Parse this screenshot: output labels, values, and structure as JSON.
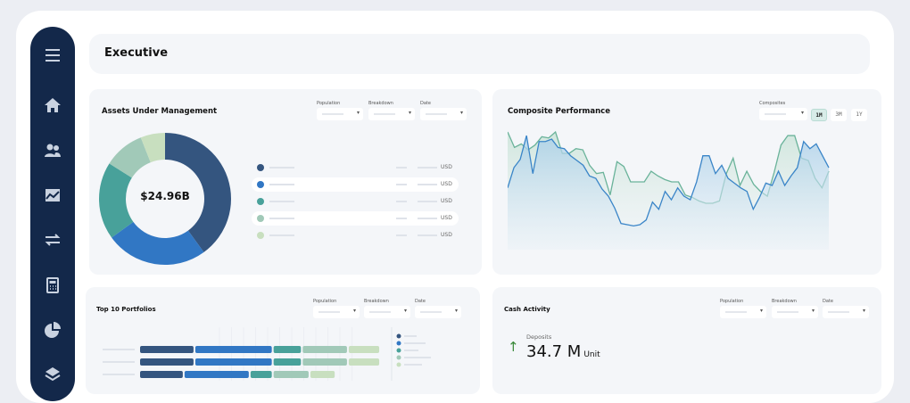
{
  "header": {
    "title": "Executive"
  },
  "sidebar": {
    "items": [
      {
        "icon": "menu-icon"
      },
      {
        "icon": "home-icon"
      },
      {
        "icon": "users-icon"
      },
      {
        "icon": "chart-icon"
      },
      {
        "icon": "transfer-icon"
      },
      {
        "icon": "calculator-icon"
      },
      {
        "icon": "pie-chart-icon"
      },
      {
        "icon": "layers-icon"
      }
    ]
  },
  "filters": {
    "population": "Population",
    "breakdown": "Breakdown",
    "date": "Date",
    "composites": "Composites"
  },
  "aum": {
    "title": "Assets Under Management",
    "total": "$24.96B",
    "legend": [
      {
        "unit": "USD",
        "color": "#34557f"
      },
      {
        "unit": "USD",
        "color": "#3177c4"
      },
      {
        "unit": "USD",
        "color": "#48a19a"
      },
      {
        "unit": "USD",
        "color": "#a1c9b8"
      },
      {
        "unit": "USD",
        "color": "#c8dfbf"
      }
    ]
  },
  "composite": {
    "title": "Composite Performance",
    "ranges": [
      "1M",
      "3M",
      "1Y"
    ],
    "active_range": "1M"
  },
  "top10": {
    "title": "Top 10 Portfolios"
  },
  "cash": {
    "title": "Cash Activity",
    "label": "Deposits",
    "value": "34.7 M",
    "unit": "Unit",
    "trend": "up",
    "trend_color": "#3a8a3a"
  },
  "chart_data": [
    {
      "type": "pie",
      "donut": true,
      "values": [
        40,
        25,
        19,
        10,
        6
      ],
      "colors": [
        "#34557f",
        "#3177c4",
        "#48a19a",
        "#a1c9b8",
        "#c8dfbf"
      ],
      "center_label": "$24.96B"
    },
    {
      "type": "area",
      "series": [
        {
          "color": "#3a85c8",
          "values": [
            52,
            69,
            76,
            96,
            64,
            91,
            91,
            93,
            86,
            85,
            79,
            75,
            71,
            62,
            60,
            51,
            45,
            35,
            22,
            21,
            20,
            21,
            25,
            40,
            34,
            49,
            42,
            52,
            45,
            42,
            57,
            79,
            79,
            64,
            71,
            60,
            56,
            52,
            49,
            34,
            44,
            56,
            54,
            66,
            54,
            62,
            69,
            91,
            85,
            89,
            79,
            69
          ]
        },
        {
          "color": "#6ab39a",
          "values": [
            99,
            86,
            89,
            84,
            88,
            95,
            94,
            99,
            81,
            81,
            85,
            84,
            71,
            64,
            65,
            46,
            74,
            70,
            57,
            57,
            57,
            66,
            62,
            59,
            57,
            57,
            46,
            44,
            41,
            39,
            39,
            41,
            64,
            77,
            54,
            66,
            55,
            49,
            45,
            65,
            88,
            96,
            96,
            77,
            75,
            60,
            52,
            66
          ]
        }
      ]
    },
    {
      "type": "bar",
      "orientation": "horizontal",
      "stacked": true,
      "colors": [
        "#34557f",
        "#3177c4",
        "#48a19a",
        "#a1c9b8",
        "#c8dfbf"
      ],
      "rows": [
        [
          36,
          51,
          19,
          30,
          21
        ],
        [
          36,
          51,
          19,
          30,
          21
        ],
        [
          29,
          43,
          15,
          24,
          17
        ]
      ]
    }
  ]
}
